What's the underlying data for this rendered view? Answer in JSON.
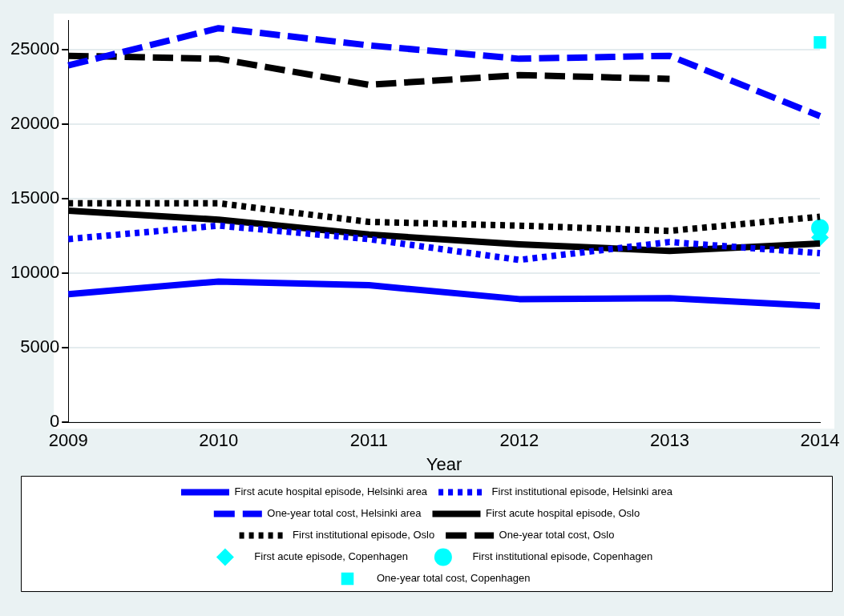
{
  "chart_data": {
    "type": "line",
    "xlabel": "Year",
    "x": [
      2009,
      2010,
      2011,
      2012,
      2013,
      2014
    ],
    "xlim": [
      2009,
      2014
    ],
    "xticks": [
      2009,
      2010,
      2011,
      2012,
      2013,
      2014
    ],
    "ylim": [
      0,
      27000
    ],
    "yticks": [
      0,
      5000,
      10000,
      15000,
      20000,
      25000
    ],
    "grid": "y",
    "legend": "bottom",
    "marker": "none",
    "series": [
      {
        "name": "First acute hospital episode, Helsinki area",
        "color": "#0000ff",
        "line_style": "solid",
        "values": [
          8600,
          9450,
          9200,
          8270,
          8330,
          7800
        ]
      },
      {
        "name": "First institutional episode, Helsinki area",
        "color": "#0000ff",
        "line_style": "dotted",
        "values": [
          12300,
          13200,
          12300,
          10900,
          12100,
          11350
        ]
      },
      {
        "name": "One-year total cost, Helsinki area",
        "color": "#0000ff",
        "line_style": "dashed",
        "values": [
          23950,
          26450,
          25300,
          24400,
          24600,
          20550
        ]
      },
      {
        "name": "First acute hospital episode, Oslo",
        "color": "#000000",
        "line_style": "solid",
        "values": [
          14200,
          13600,
          12600,
          11950,
          11500,
          12000
        ]
      },
      {
        "name": "First institutional episode, Oslo",
        "color": "#000000",
        "line_style": "dotted",
        "values": [
          14700,
          14700,
          13450,
          13200,
          12850,
          13800
        ]
      },
      {
        "name": "One-year total cost, Oslo",
        "color": "#000000",
        "line_style": "dashed",
        "values": [
          24600,
          24400,
          22650,
          23300,
          23050,
          null
        ]
      },
      {
        "name": "First acute episode, Copenhagen",
        "type": "scatter",
        "marker": "diamond",
        "color": "#00ffff",
        "values": [
          null,
          null,
          null,
          null,
          null,
          12400
        ]
      },
      {
        "name": "First institutional episode, Copenhagen",
        "type": "scatter",
        "marker": "circle",
        "color": "#00ffff",
        "values": [
          null,
          null,
          null,
          null,
          null,
          13050
        ]
      },
      {
        "name": "One-year total cost, Copenhagen",
        "type": "scatter",
        "marker": "square",
        "color": "#00ffff",
        "values": [
          null,
          null,
          null,
          null,
          null,
          25500
        ]
      }
    ]
  }
}
